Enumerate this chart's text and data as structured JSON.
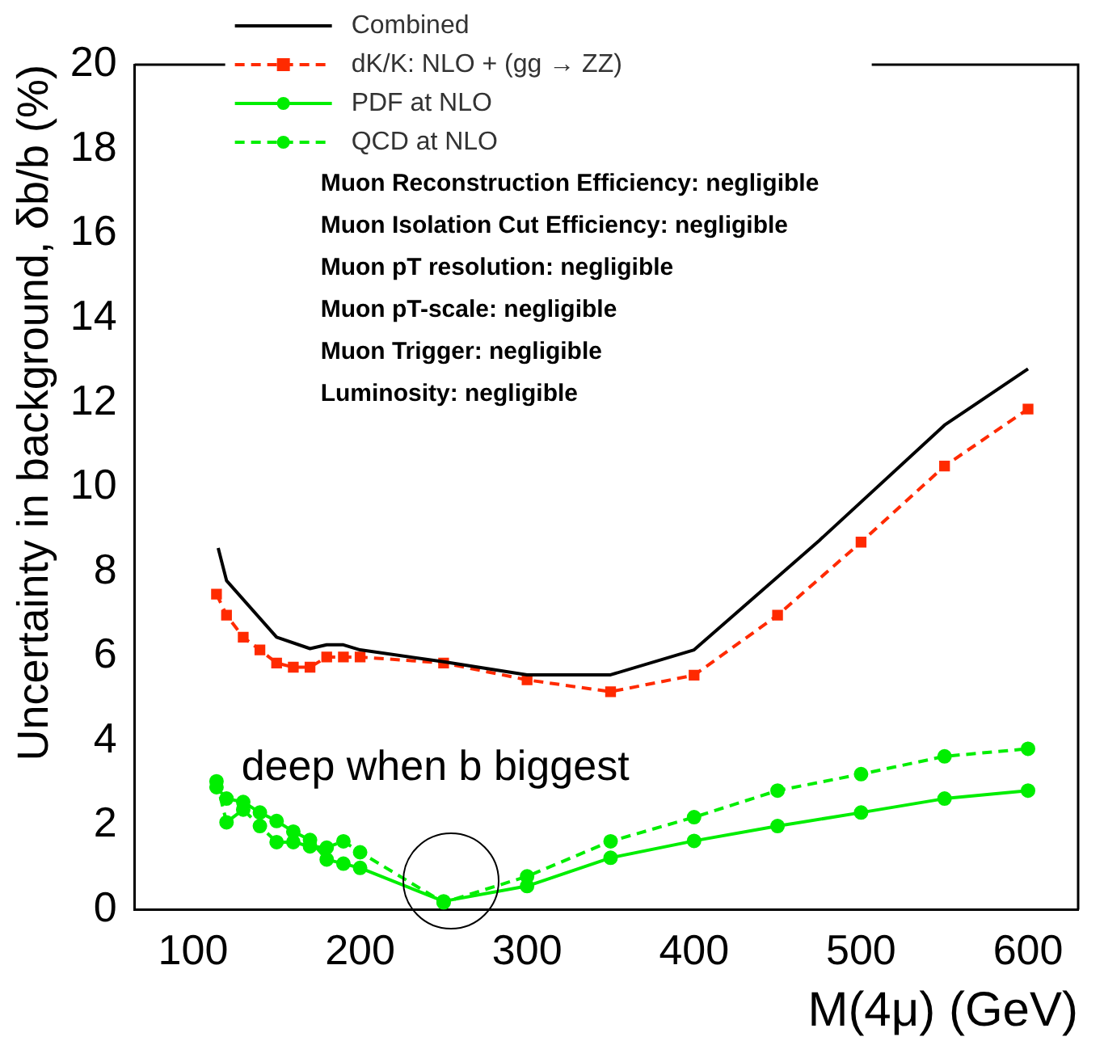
{
  "chart_data": {
    "type": "line",
    "xlabel": "M(4μ) (GeV)",
    "ylabel": "Uncertainty in background, δb/b (%)",
    "xlim": [
      65,
      630
    ],
    "xticks": [
      100,
      200,
      300,
      400,
      500,
      600
    ],
    "ylim": [
      0,
      20
    ],
    "yticks": [
      0,
      2,
      4,
      6,
      8,
      10,
      12,
      14,
      16,
      18,
      20
    ],
    "grid": false,
    "legend": "top left",
    "annotations": [
      "Muon Reconstruction Efficiency: negligible",
      "Muon Isolation Cut Efficiency: negligible",
      "Muon pT resolution: negligible",
      "Muon pT-scale: negligible",
      "Muon Trigger: negligible",
      "Luminosity: negligible",
      "deep when b biggest"
    ],
    "series": [
      {
        "name": "Combined",
        "color": "#000000",
        "marker": "none",
        "line_style": "solid",
        "x": [
          115,
          120,
          150,
          170,
          180,
          190,
          200,
          250,
          300,
          350,
          400,
          475,
          550,
          600
        ],
        "values": [
          8.56,
          7.79,
          6.45,
          6.18,
          6.27,
          6.27,
          6.15,
          5.87,
          5.56,
          5.56,
          6.15,
          8.74,
          11.47,
          12.8
        ]
      },
      {
        "name": "dK/K: NLO + (gg → ZZ)",
        "color": "#ff2a00",
        "marker": "square",
        "line_style": "dashed",
        "x": [
          114,
          120,
          130,
          140,
          150,
          160,
          170,
          180,
          190,
          200,
          250,
          300,
          350,
          400,
          450,
          500,
          550,
          600
        ],
        "values": [
          7.47,
          6.97,
          6.45,
          6.15,
          5.84,
          5.74,
          5.74,
          5.98,
          5.98,
          5.98,
          5.84,
          5.44,
          5.16,
          5.55,
          6.97,
          8.7,
          10.5,
          11.85
        ]
      },
      {
        "name": "PDF at NLO",
        "color": "#00ee00",
        "marker": "circle",
        "line_style": "solid",
        "x": [
          114,
          120,
          130,
          140,
          150,
          160,
          170,
          180,
          190,
          200,
          250,
          300,
          350,
          400,
          450,
          500,
          550,
          600
        ],
        "values": [
          2.9,
          2.63,
          2.55,
          2.3,
          2.1,
          1.85,
          1.65,
          1.19,
          1.09,
          0.99,
          0.2,
          0.56,
          1.23,
          1.63,
          1.98,
          2.3,
          2.63,
          2.82
        ]
      },
      {
        "name": "QCD at NLO",
        "color": "#00ee00",
        "marker": "circle",
        "line_style": "dashed",
        "x": [
          114,
          120,
          130,
          140,
          150,
          160,
          170,
          180,
          190,
          200,
          250,
          300,
          350,
          400,
          450,
          500,
          550,
          600
        ],
        "values": [
          3.04,
          2.07,
          2.37,
          1.98,
          1.6,
          1.6,
          1.5,
          1.47,
          1.62,
          1.36,
          0.17,
          0.79,
          1.62,
          2.19,
          2.82,
          3.21,
          3.63,
          3.81
        ]
      }
    ]
  }
}
